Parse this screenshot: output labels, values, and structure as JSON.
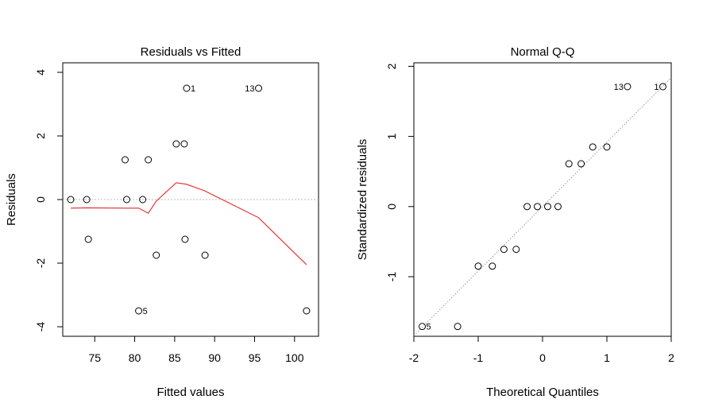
{
  "chart_data": [
    {
      "type": "scatter",
      "title": "Residuals vs Fitted",
      "xlabel": "Fitted values",
      "ylabel": "Residuals",
      "xlim": [
        71,
        103
      ],
      "ylim": [
        -4.3,
        4.3
      ],
      "xticks": [
        75,
        80,
        85,
        90,
        95,
        100
      ],
      "yticks": [
        -4,
        -2,
        0,
        2,
        4
      ],
      "x": [
        72.0,
        74.0,
        74.2,
        78.8,
        79.0,
        80.5,
        81.0,
        81.7,
        82.7,
        85.2,
        86.2,
        86.3,
        86.5,
        88.8,
        95.5,
        101.5
      ],
      "y": [
        0.0,
        0.0,
        -1.25,
        1.25,
        0.0,
        -3.5,
        0.0,
        1.25,
        -1.75,
        1.75,
        1.75,
        -1.25,
        3.5,
        -1.75,
        3.5,
        -3.5
      ],
      "point_labels": [
        {
          "index": 12,
          "text": "1",
          "side": "right"
        },
        {
          "index": 14,
          "text": "13",
          "side": "left"
        },
        {
          "index": 5,
          "text": "5",
          "side": "right"
        }
      ],
      "reference_line_y": 0,
      "smoother": {
        "x": [
          72.0,
          74.0,
          78.8,
          80.5,
          81.7,
          82.7,
          85.2,
          86.5,
          88.8,
          95.5,
          101.5
        ],
        "y": [
          -0.27,
          -0.26,
          -0.27,
          -0.27,
          -0.43,
          -0.05,
          0.53,
          0.48,
          0.27,
          -0.57,
          -2.05
        ],
        "color": "#e8262c"
      }
    },
    {
      "type": "scatter",
      "title": "Normal Q-Q",
      "xlabel": "Theoretical Quantiles",
      "ylabel": "Standardized residuals",
      "xlim": [
        -2.0,
        2.0
      ],
      "ylim": [
        -1.85,
        2.05
      ],
      "xticks": [
        -2,
        -1,
        0,
        1,
        2
      ],
      "yticks": [
        -1,
        0,
        1,
        2
      ],
      "x": [
        -1.87,
        -1.32,
        -1.0,
        -0.78,
        -0.6,
        -0.41,
        -0.24,
        -0.08,
        0.08,
        0.24,
        0.41,
        0.6,
        0.78,
        1.0,
        1.32,
        1.87
      ],
      "y": [
        -1.71,
        -1.71,
        -0.85,
        -0.85,
        -0.61,
        -0.61,
        0.0,
        0.0,
        0.0,
        0.0,
        0.61,
        0.61,
        0.85,
        0.85,
        1.71,
        1.71
      ],
      "point_labels": [
        {
          "index": 0,
          "text": "5",
          "side": "right"
        },
        {
          "index": 14,
          "text": "13",
          "side": "left"
        },
        {
          "index": 15,
          "text": "1",
          "side": "left"
        }
      ],
      "qq_line": {
        "slope": 0.92,
        "intercept": 0.0
      }
    }
  ]
}
